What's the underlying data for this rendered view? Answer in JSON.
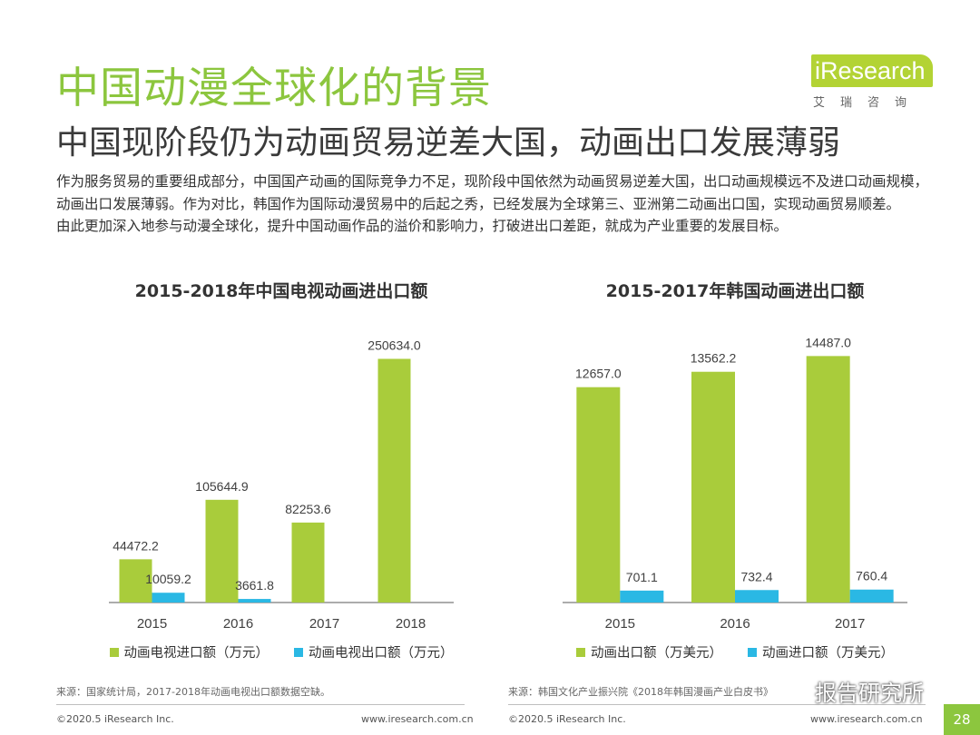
{
  "header": {
    "title": "中国动漫全球化的背景",
    "subtitle": "中国现阶段仍为动画贸易逆差大国，动画出口发展薄弱"
  },
  "logo": {
    "word": "iResearch",
    "sub": "艾瑞咨询"
  },
  "body": {
    "paragraph1": "作为服务贸易的重要组成部分，中国国产动画的国际竞争力不足，现阶段中国依然为动画贸易逆差大国，出口动画规模远不及进口动画规模，动画出口发展薄弱。作为对比，韩国作为国际动漫贸易中的后起之秀，已经发展为全球第三、亚洲第二动画出口国，实现动画贸易顺差。",
    "paragraph2": "由此更加深入地参与动漫全球化，提升中国动画作品的溢价和影响力，打破进出口差距，就成为产业重要的发展目标。"
  },
  "chart_data": [
    {
      "type": "bar",
      "title": "2015-2018年中国电视动画进出口额",
      "categories": [
        "2015",
        "2016",
        "2017",
        "2018"
      ],
      "series": [
        {
          "name": "动画电视进口额（万元）",
          "values": [
            44472.2,
            105644.9,
            82253.6,
            250634.0
          ],
          "labels": [
            "44472.2",
            "105644.9",
            "82253.6",
            "250634.0"
          ],
          "color": "#a9cc3b"
        },
        {
          "name": "动画电视出口额（万元）",
          "values": [
            10059.2,
            3661.8,
            null,
            null
          ],
          "labels": [
            "10059.2",
            "3661.8",
            "",
            ""
          ],
          "color": "#2ab8e4"
        }
      ],
      "ylim": [
        0,
        280000
      ],
      "grid": false,
      "legend_position": "bottom"
    },
    {
      "type": "bar",
      "title": "2015-2017年韩国动画进出口额",
      "categories": [
        "2015",
        "2016",
        "2017"
      ],
      "series": [
        {
          "name": "动画出口额（万美元）",
          "values": [
            12657.0,
            13562.2,
            14487.0
          ],
          "labels": [
            "12657.0",
            "13562.2",
            "14487.0"
          ],
          "color": "#a9cc3b"
        },
        {
          "name": "动画进口额（万美元）",
          "values": [
            701.1,
            732.4,
            760.4
          ],
          "labels": [
            "701.1",
            "732.4",
            "760.4"
          ],
          "color": "#2ab8e4"
        }
      ],
      "ylim": [
        0,
        16000
      ],
      "grid": false,
      "legend_position": "bottom"
    }
  ],
  "sources": {
    "left": "来源：国家统计局，2017-2018年动画电视出口额数据空缺。",
    "right": "来源：韩国文化产业振兴院《2018年韩国漫画产业白皮书》"
  },
  "footer": {
    "copyright_left": "©2020.5 iResearch Inc.",
    "url_left": "www.iresearch.com.cn",
    "copyright_right": "©2020.5 iResearch Inc.",
    "url_right": "www.iresearch.com.cn",
    "page_number": "28"
  },
  "watermark": {
    "text": "报告研究所",
    "icon": "wechat-icon"
  }
}
